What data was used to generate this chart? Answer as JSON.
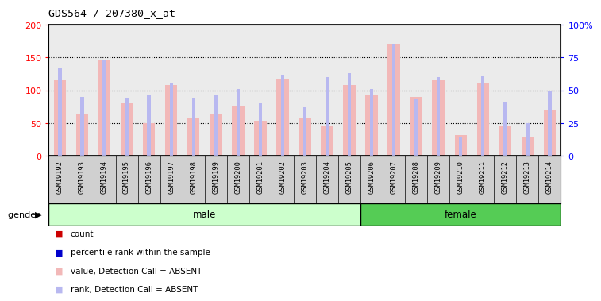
{
  "title": "GDS564 / 207380_x_at",
  "samples": [
    "GSM19192",
    "GSM19193",
    "GSM19194",
    "GSM19195",
    "GSM19196",
    "GSM19197",
    "GSM19198",
    "GSM19199",
    "GSM19200",
    "GSM19201",
    "GSM19202",
    "GSM19203",
    "GSM19204",
    "GSM19205",
    "GSM19206",
    "GSM19207",
    "GSM19208",
    "GSM19209",
    "GSM19210",
    "GSM19211",
    "GSM19212",
    "GSM19213",
    "GSM19214"
  ],
  "values": [
    116,
    65,
    147,
    80,
    50,
    108,
    59,
    65,
    76,
    54,
    117,
    58,
    45,
    108,
    92,
    171,
    90,
    116,
    32,
    111,
    45,
    29,
    70
  ],
  "percentile_ranks": [
    67,
    45,
    73,
    44,
    46,
    56,
    44,
    46,
    51,
    40,
    62,
    37,
    60,
    63,
    51,
    85,
    43,
    60,
    15,
    61,
    41,
    25,
    49
  ],
  "male_count": 14,
  "female_count": 9,
  "ylim": [
    0,
    200
  ],
  "y2lim": [
    0,
    100
  ],
  "yticks": [
    0,
    50,
    100,
    150,
    200
  ],
  "y2ticks": [
    0,
    25,
    50,
    75,
    100
  ],
  "bar_color_absent": "#f2b8b8",
  "rank_color_absent": "#b8b8f0",
  "bg_plot": "#ebebeb",
  "bg_xlabel": "#d0d0d0",
  "male_color": "#ccffcc",
  "female_color": "#55cc55",
  "legend_colors": [
    "#cc0000",
    "#0000cc",
    "#f2b8b8",
    "#b8b8f0"
  ],
  "legend_labels": [
    "count",
    "percentile rank within the sample",
    "value, Detection Call = ABSENT",
    "rank, Detection Call = ABSENT"
  ]
}
